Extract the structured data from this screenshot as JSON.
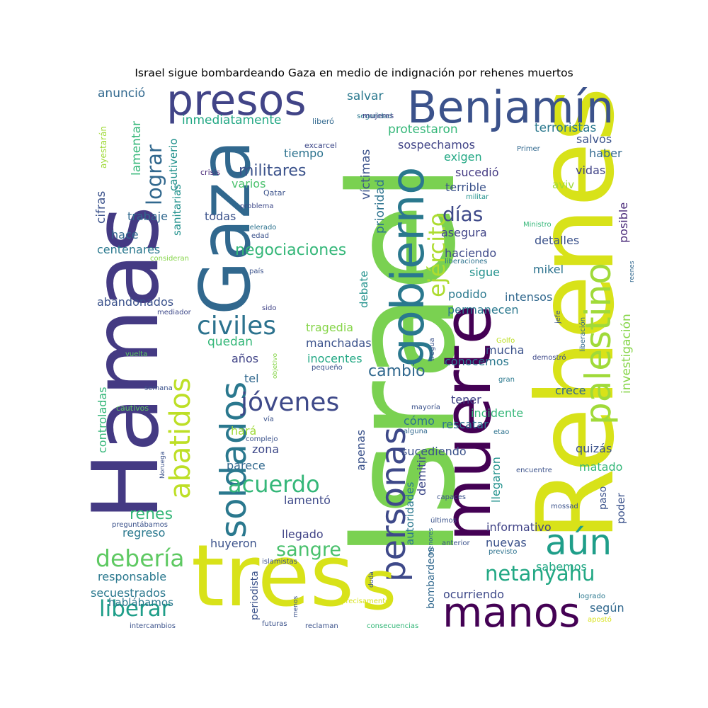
{
  "title": "Israel sigue bombardeando Gaza en medio de indignación por rehenes muertos",
  "words": [
    {
      "text": "Israel",
      "color": "#7ad151"
    },
    {
      "text": "Rehenes",
      "color": "#d8e219"
    },
    {
      "text": "Hamas",
      "color": "#443a83"
    },
    {
      "text": "tres",
      "color": "#d8e219"
    },
    {
      "text": "muerte",
      "color": "#440154"
    },
    {
      "text": "Gaza",
      "color": "#31688e"
    },
    {
      "text": "Benjamín",
      "color": "#3b528b"
    },
    {
      "text": "presos",
      "color": "#414487"
    },
    {
      "text": "gobierno",
      "color": "#2a788e"
    },
    {
      "text": "palestino",
      "color": "#a0da39"
    },
    {
      "text": "personas",
      "color": "#3e4989"
    },
    {
      "text": "manos",
      "color": "#440154"
    },
    {
      "text": "aún",
      "color": "#1f9e89"
    },
    {
      "text": "soldados",
      "color": "#2a788e"
    },
    {
      "text": "abatidos",
      "color": "#bddf26"
    },
    {
      "text": "s",
      "color": "#d8e219"
    },
    {
      "text": "ejército",
      "color": "#addc30"
    },
    {
      "text": "jóvenes",
      "color": "#3e4989"
    },
    {
      "text": "acuerdo",
      "color": "#35b779"
    },
    {
      "text": "civiles",
      "color": "#2c728e"
    },
    {
      "text": "sangre",
      "color": "#4ac16d"
    },
    {
      "text": "debería",
      "color": "#5ec962"
    },
    {
      "text": "liberar",
      "color": "#1f9e89"
    },
    {
      "text": "netanyahu",
      "color": "#22a884"
    },
    {
      "text": "lograr",
      "color": "#31688e"
    },
    {
      "text": "días",
      "color": "#3e4989"
    },
    {
      "text": "militares",
      "color": "#3b528b"
    },
    {
      "text": "negociaciones",
      "color": "#35b779"
    },
    {
      "text": "cambio",
      "color": "#31688e"
    },
    {
      "text": "investigación",
      "color": "#86d549"
    },
    {
      "text": "protestaron",
      "color": "#35b779"
    },
    {
      "text": "terroristas",
      "color": "#2a788e"
    },
    {
      "text": "víctimas",
      "color": "#3b528b"
    },
    {
      "text": "prioridad",
      "color": "#2c728e"
    },
    {
      "text": "inmediatamente",
      "color": "#22a884"
    },
    {
      "text": "cautiverio",
      "color": "#21918c"
    },
    {
      "text": "lamentar",
      "color": "#35b779"
    },
    {
      "text": "ayestarán",
      "color": "#a0da39"
    },
    {
      "text": "cifras",
      "color": "#3b528b"
    },
    {
      "text": "anunció",
      "color": "#31688e"
    },
    {
      "text": "salvar",
      "color": "#2a788e"
    },
    {
      "text": "sospechamos",
      "color": "#414487"
    },
    {
      "text": "salvos",
      "color": "#3b528b"
    },
    {
      "text": "haber",
      "color": "#31688e"
    },
    {
      "text": "exigen",
      "color": "#22a884"
    },
    {
      "text": "tiempo",
      "color": "#2c728e"
    },
    {
      "text": "sucedió",
      "color": "#443a83"
    },
    {
      "text": "terrible",
      "color": "#3b528b"
    },
    {
      "text": "vidas",
      "color": "#414487"
    },
    {
      "text": "aviv",
      "color": "#a0da39"
    },
    {
      "text": "posible",
      "color": "#482878"
    },
    {
      "text": "varios",
      "color": "#4ac16d"
    },
    {
      "text": "todas",
      "color": "#3b528b"
    },
    {
      "text": "trabaje",
      "color": "#31688e"
    },
    {
      "text": "hace",
      "color": "#31688e"
    },
    {
      "text": "centenares",
      "color": "#2a788e"
    },
    {
      "text": "sanitarias",
      "color": "#21918c"
    },
    {
      "text": "asegura",
      "color": "#414487"
    },
    {
      "text": "detalles",
      "color": "#3b528b"
    },
    {
      "text": "haciendo",
      "color": "#3e4989"
    },
    {
      "text": "sigue",
      "color": "#21918c"
    },
    {
      "text": "mikel",
      "color": "#2c728e"
    },
    {
      "text": "podido",
      "color": "#2a788e"
    },
    {
      "text": "intensos",
      "color": "#31688e"
    },
    {
      "text": "permanecen",
      "color": "#2a788e"
    },
    {
      "text": "abandonados",
      "color": "#3b528b"
    },
    {
      "text": "debate",
      "color": "#21918c"
    },
    {
      "text": "tragedia",
      "color": "#86d549"
    },
    {
      "text": "quedan",
      "color": "#35b779"
    },
    {
      "text": "manchadas",
      "color": "#3b528b"
    },
    {
      "text": "inocentes",
      "color": "#22a884"
    },
    {
      "text": "años",
      "color": "#414487"
    },
    {
      "text": "tel",
      "color": "#31688e"
    },
    {
      "text": "mucha",
      "color": "#3b528b"
    },
    {
      "text": "conocemos",
      "color": "#2a788e"
    },
    {
      "text": "crece",
      "color": "#31688e"
    },
    {
      "text": "controladas",
      "color": "#35b779"
    },
    {
      "text": "hará",
      "color": "#a0da39"
    },
    {
      "text": "zona",
      "color": "#3e4989"
    },
    {
      "text": "parece",
      "color": "#31688e"
    },
    {
      "text": "tener",
      "color": "#414487"
    },
    {
      "text": "incidente",
      "color": "#35b779"
    },
    {
      "text": "rescatar",
      "color": "#2c728e"
    },
    {
      "text": "cómo",
      "color": "#2c728e"
    },
    {
      "text": "apenas",
      "color": "#3b528b"
    },
    {
      "text": "sucediendo",
      "color": "#3b528b"
    },
    {
      "text": "demitir",
      "color": "#3e4989"
    },
    {
      "text": "quizás",
      "color": "#3b528b"
    },
    {
      "text": "matado",
      "color": "#35b779"
    },
    {
      "text": "llegaron",
      "color": "#21918c"
    },
    {
      "text": "paso",
      "color": "#3b528b"
    },
    {
      "text": "poder",
      "color": "#3b528b"
    },
    {
      "text": "renes",
      "color": "#35b779"
    },
    {
      "text": "regreso",
      "color": "#2a788e"
    },
    {
      "text": "lamentó",
      "color": "#3e4989"
    },
    {
      "text": "autoridades",
      "color": "#2a788e"
    },
    {
      "text": "informativo",
      "color": "#414487"
    },
    {
      "text": "llegado",
      "color": "#414487"
    },
    {
      "text": "huyeron",
      "color": "#3b528b"
    },
    {
      "text": "nuevas",
      "color": "#3b528b"
    },
    {
      "text": "sabemos",
      "color": "#22a884"
    },
    {
      "text": "responsable",
      "color": "#2a788e"
    },
    {
      "text": "secuestrados",
      "color": "#2a788e"
    },
    {
      "text": "hablábamos",
      "color": "#2a788e"
    },
    {
      "text": "periodista",
      "color": "#3b528b"
    },
    {
      "text": "bombardeos",
      "color": "#31688e"
    },
    {
      "text": "ocurriendo",
      "color": "#3e4989"
    },
    {
      "text": "según",
      "color": "#31688e"
    },
    {
      "text": "liberó",
      "color": "#31688e"
    },
    {
      "text": "seguridad",
      "color": "#2a788e"
    },
    {
      "text": "mujeres",
      "color": "#414487"
    },
    {
      "text": "excarcel",
      "color": "#3e4989"
    },
    {
      "text": "Primer",
      "color": "#31688e"
    },
    {
      "text": "crisis",
      "color": "#482878"
    },
    {
      "text": "Qatar",
      "color": "#3b528b"
    },
    {
      "text": "militar",
      "color": "#21918c"
    },
    {
      "text": "problema",
      "color": "#3e4989"
    },
    {
      "text": "acelerado",
      "color": "#2c728e"
    },
    {
      "text": "edad",
      "color": "#3b528b"
    },
    {
      "text": "Ministro",
      "color": "#35b779"
    },
    {
      "text": "consideran",
      "color": "#86d549"
    },
    {
      "text": "liberaciones",
      "color": "#2c728e"
    },
    {
      "text": "país",
      "color": "#3b528b"
    },
    {
      "text": "reenes",
      "color": "#31688e"
    },
    {
      "text": "mediador",
      "color": "#3e4989"
    },
    {
      "text": "sido",
      "color": "#414487"
    },
    {
      "text": "jefe",
      "color": "#3b528b"
    },
    {
      "text": "liberación",
      "color": "#31688e"
    },
    {
      "text": "tregua",
      "color": "#3b528b"
    },
    {
      "text": "Golfo",
      "color": "#bddf26"
    },
    {
      "text": "vuelta",
      "color": "#5ec962"
    },
    {
      "text": "objetivo",
      "color": "#86d549"
    },
    {
      "text": "pequeño",
      "color": "#3b528b"
    },
    {
      "text": "demostró",
      "color": "#3e4989"
    },
    {
      "text": "gran",
      "color": "#2a788e"
    },
    {
      "text": "semana",
      "color": "#3b528b"
    },
    {
      "text": "cautivos",
      "color": "#5ec962"
    },
    {
      "text": "mayoría",
      "color": "#3b528b"
    },
    {
      "text": "vía",
      "color": "#3b528b"
    },
    {
      "text": "complejo",
      "color": "#3b528b"
    },
    {
      "text": "alguna",
      "color": "#31688e"
    },
    {
      "text": "etao",
      "color": "#2c728e"
    },
    {
      "text": "Noruega",
      "color": "#3b528b"
    },
    {
      "text": "encuentre",
      "color": "#3b528b"
    },
    {
      "text": "capaces",
      "color": "#3b528b"
    },
    {
      "text": "mossad",
      "color": "#3b528b"
    },
    {
      "text": "últimos",
      "color": "#3b528b"
    },
    {
      "text": "preguntábamos",
      "color": "#3b528b"
    },
    {
      "text": "anterior",
      "color": "#3b528b"
    },
    {
      "text": "previsto",
      "color": "#2c728e"
    },
    {
      "text": "menores",
      "color": "#31688e"
    },
    {
      "text": "islamistas",
      "color": "#3b528b"
    },
    {
      "text": "duda",
      "color": "#3b528b"
    },
    {
      "text": "menos",
      "color": "#3b528b"
    },
    {
      "text": "precisamente",
      "color": "#d8e219"
    },
    {
      "text": "logrado",
      "color": "#2a788e"
    },
    {
      "text": "futuras",
      "color": "#3b528b"
    },
    {
      "text": "reclaman",
      "color": "#3b528b"
    },
    {
      "text": "consecuencias",
      "color": "#35b779"
    },
    {
      "text": "apostó",
      "color": "#d8e219"
    },
    {
      "text": "intercambios",
      "color": "#3b528b"
    }
  ]
}
